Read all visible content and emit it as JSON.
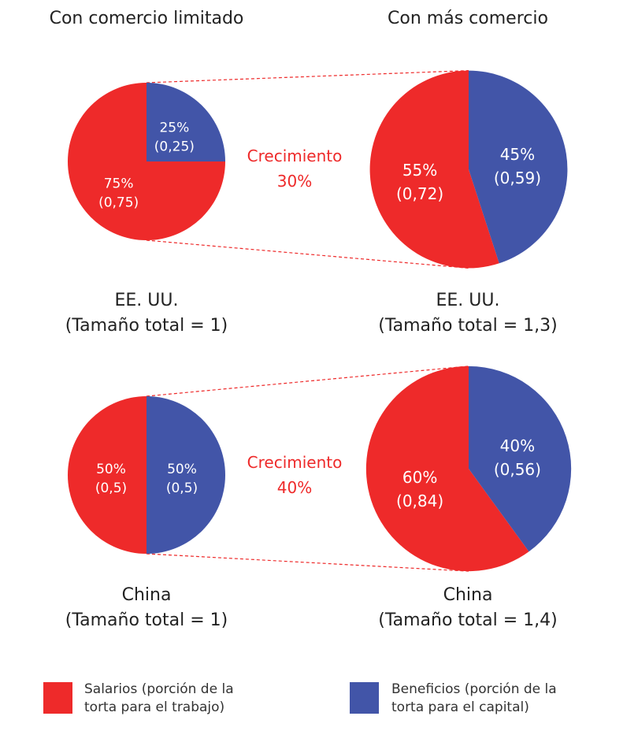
{
  "colors": {
    "salarios": "#ee2a2a",
    "beneficios": "#4255a8"
  },
  "headers": {
    "left": "Con comercio limitado",
    "right": "Con más comercio"
  },
  "chart_data": [
    {
      "type": "pie",
      "country": "EE. UU.",
      "caption": "(Tamaño total = 1)",
      "total": 1,
      "slices": [
        {
          "series": "Salarios",
          "percent": 75,
          "value_label": "(0,75)",
          "value": 0.75
        },
        {
          "series": "Beneficios",
          "percent": 25,
          "value_label": "(0,25)",
          "value": 0.25
        }
      ]
    },
    {
      "type": "pie",
      "country": "EE. UU.",
      "caption": "(Tamaño total = 1,3)",
      "total": 1.3,
      "slices": [
        {
          "series": "Salarios",
          "percent": 55,
          "value_label": "(0,72)",
          "value": 0.72
        },
        {
          "series": "Beneficios",
          "percent": 45,
          "value_label": "(0,59)",
          "value": 0.59
        }
      ]
    },
    {
      "type": "pie",
      "country": "China",
      "caption": "(Tamaño total = 1)",
      "total": 1,
      "slices": [
        {
          "series": "Salarios",
          "percent": 50,
          "value_label": "(0,5)",
          "value": 0.5
        },
        {
          "series": "Beneficios",
          "percent": 50,
          "value_label": "(0,5)",
          "value": 0.5
        }
      ]
    },
    {
      "type": "pie",
      "country": "China",
      "caption": "(Tamaño total = 1,4)",
      "total": 1.4,
      "slices": [
        {
          "series": "Salarios",
          "percent": 60,
          "value_label": "(0,84)",
          "value": 0.84
        },
        {
          "series": "Beneficios",
          "percent": 40,
          "value_label": "(0,56)",
          "value": 0.56
        }
      ]
    }
  ],
  "growth": [
    {
      "label": "Crecimiento",
      "value": "30%"
    },
    {
      "label": "Crecimiento",
      "value": "40%"
    }
  ],
  "legend": [
    {
      "line1": "Salarios (porción de la",
      "line2": "torta para el trabajo)"
    },
    {
      "line1": "Beneficios (porción de la",
      "line2": "torta para el capital)"
    }
  ]
}
